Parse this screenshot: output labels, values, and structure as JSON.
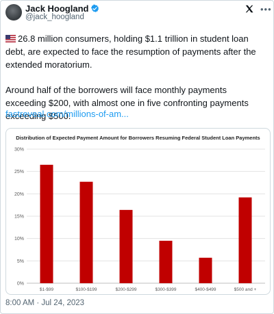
{
  "author": {
    "display_name": "Jack Hoogland",
    "handle": "@jack_hoogland"
  },
  "tweet": {
    "flag_icon": "us-flag-icon",
    "paragraph1": "26.8 million consumers, holding $1.1 trillion in student loan debt, are expected to face the resumption of payments after the extended moratorium.",
    "paragraph2": "Around half of the borrowers will face monthly payments exceeding $200, with almost one in five confronting payments exceeding $500.",
    "link_text": "fastreveal.com/millions-of-am...",
    "timestamp": "8:00 AM · Jul 24, 2023"
  },
  "colors": {
    "link": "#1d9bf0",
    "bar": "#c00000",
    "verified": "#1d9bf0"
  },
  "chart_data": {
    "type": "bar",
    "title": "Distribution of Expected Payment Amount for Borrowers Resuming Federal Student Loan Payments",
    "categories": [
      "$1-$99",
      "$100-$199",
      "$200-$299",
      "$300-$399",
      "$400-$499",
      "$500 and +"
    ],
    "values": [
      26.5,
      22.7,
      16.4,
      9.5,
      5.7,
      19.2
    ],
    "ylim": [
      0,
      30
    ],
    "yticks": [
      "0%",
      "5%",
      "10%",
      "15%",
      "20%",
      "25%",
      "30%"
    ],
    "grid": true,
    "legend": "none"
  }
}
